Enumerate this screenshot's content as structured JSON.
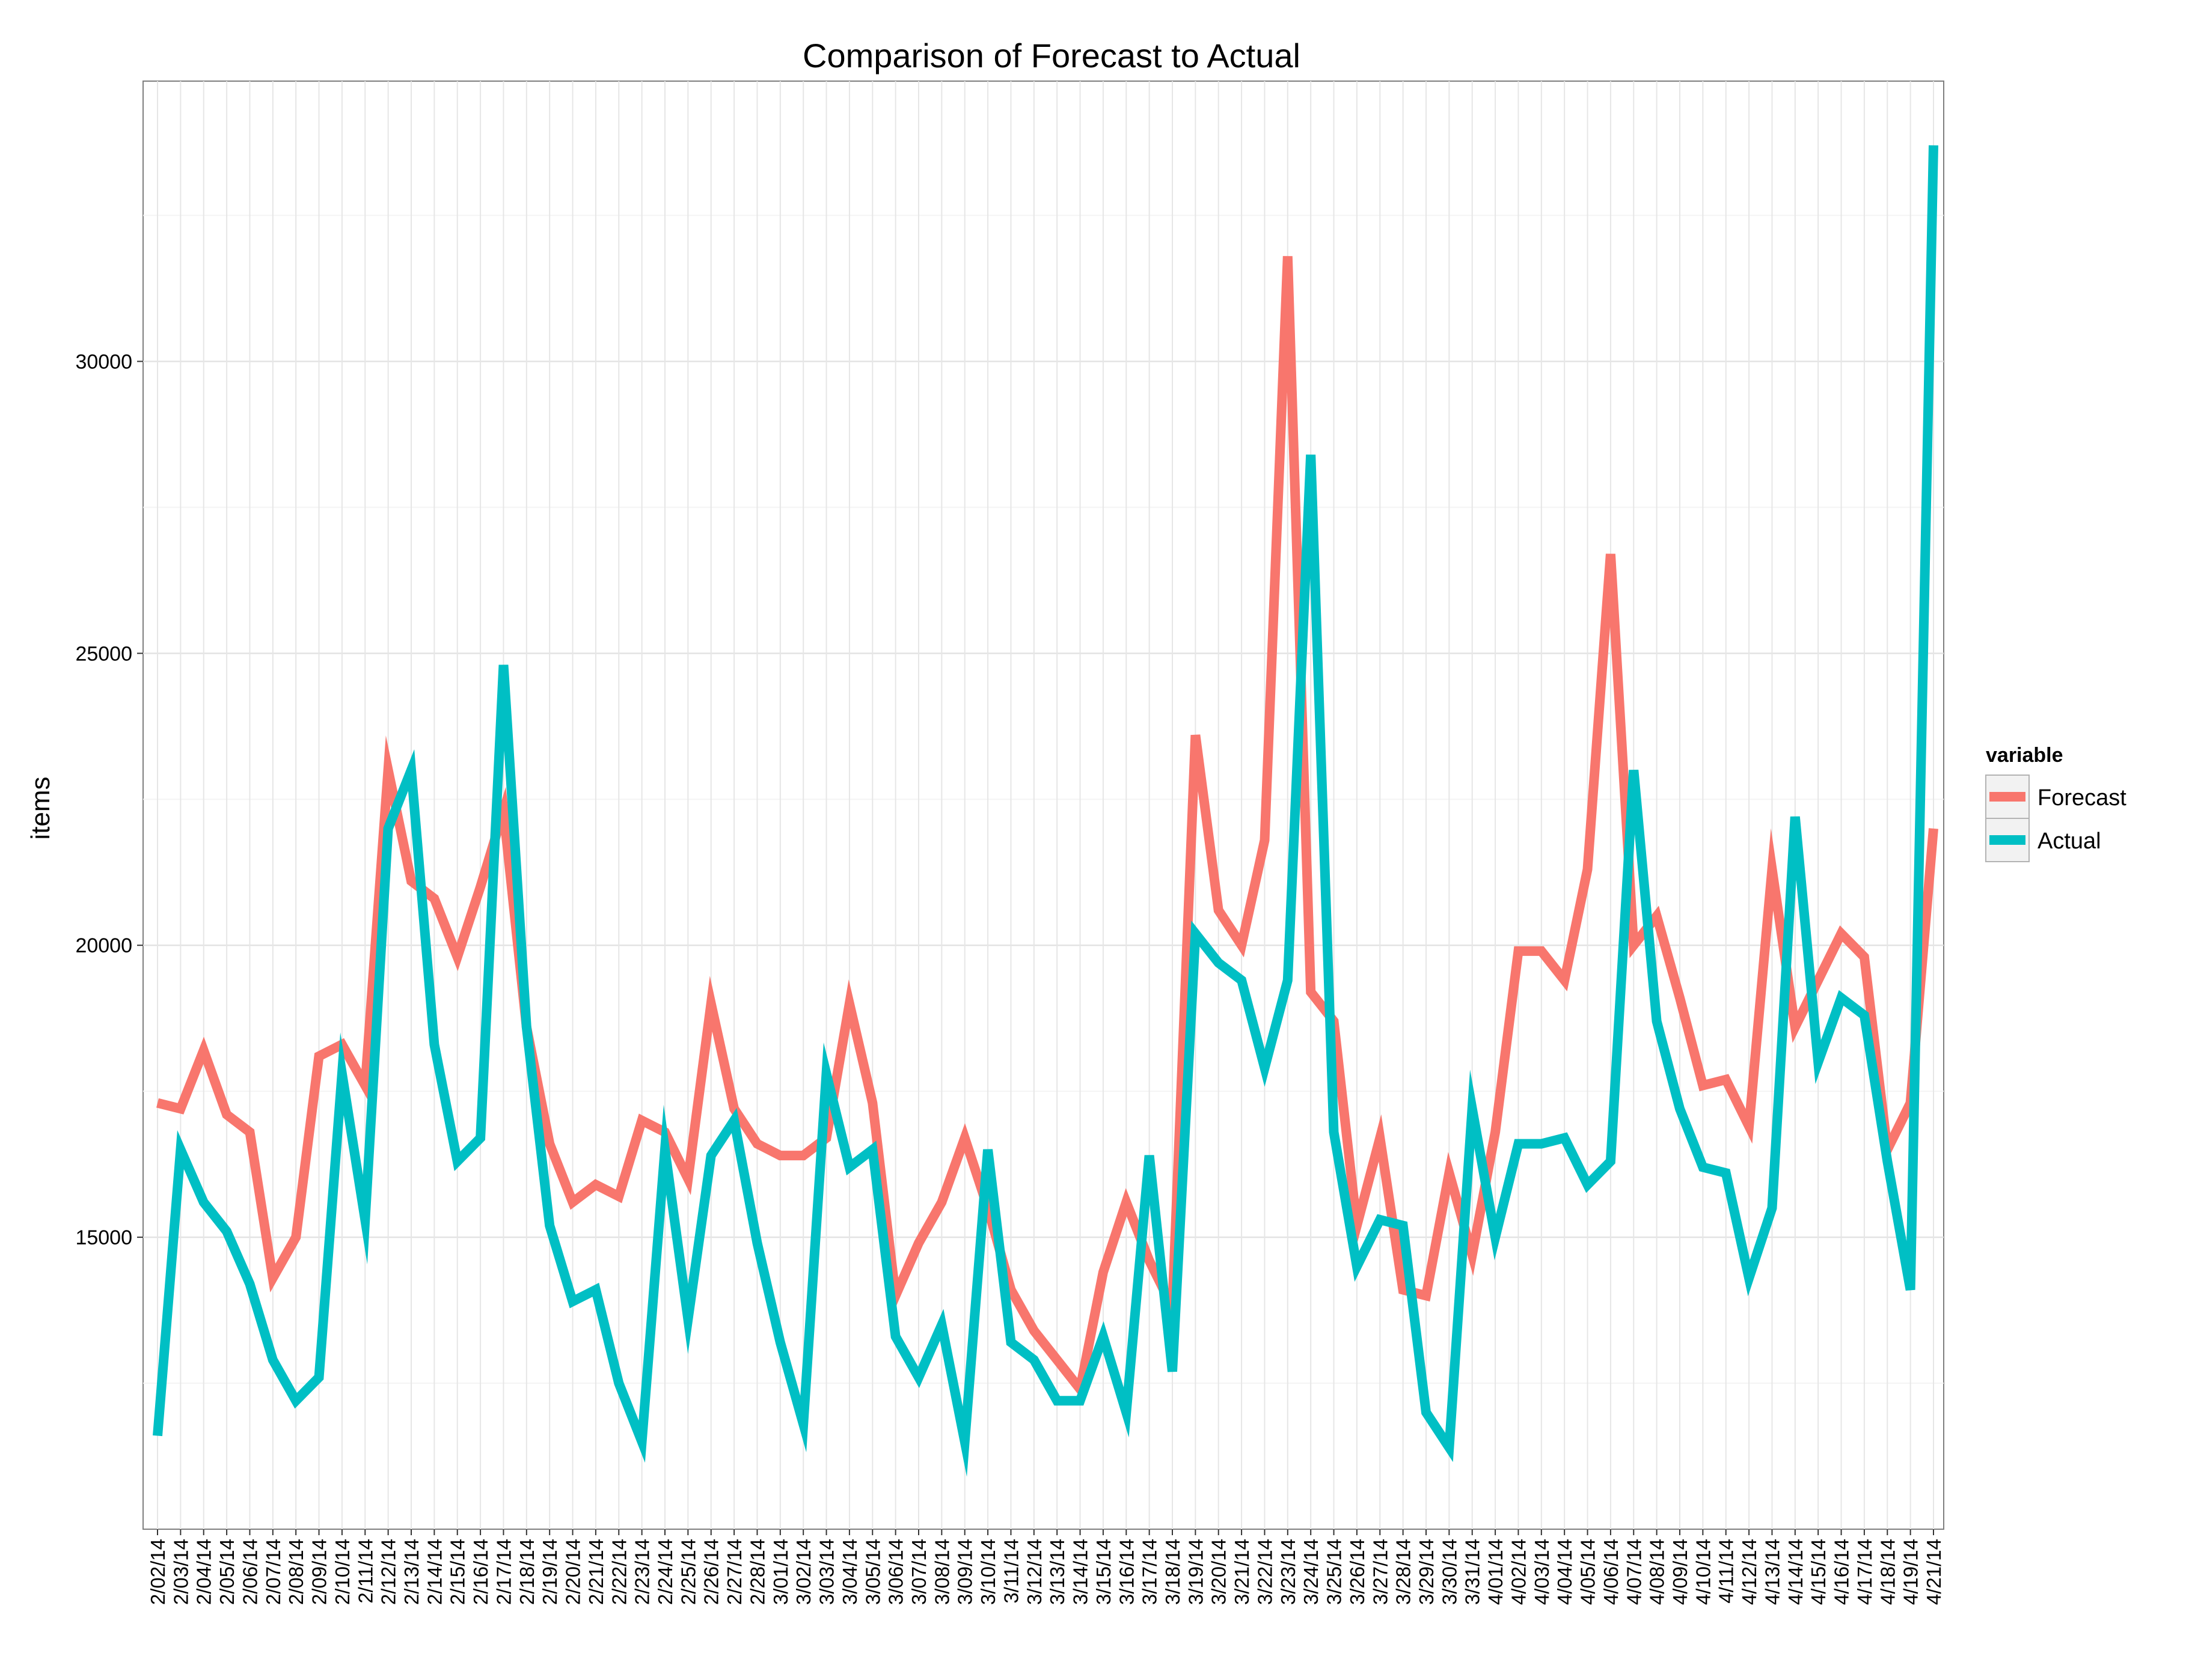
{
  "chart_data": {
    "type": "line",
    "title": "Comparison of Forecast to Actual",
    "xlabel": "",
    "ylabel": "items",
    "ylim": [
      10000,
      34800
    ],
    "yticks": [
      15000,
      20000,
      25000,
      30000
    ],
    "grid": true,
    "legend": {
      "title": "variable",
      "position": "right"
    },
    "categories": [
      "2/02/14",
      "2/03/14",
      "2/04/14",
      "2/05/14",
      "2/06/14",
      "2/07/14",
      "2/08/14",
      "2/09/14",
      "2/10/14",
      "2/11/14",
      "2/12/14",
      "2/13/14",
      "2/14/14",
      "2/15/14",
      "2/16/14",
      "2/17/14",
      "2/18/14",
      "2/19/14",
      "2/20/14",
      "2/21/14",
      "2/22/14",
      "2/23/14",
      "2/24/14",
      "2/25/14",
      "2/26/14",
      "2/27/14",
      "2/28/14",
      "3/01/14",
      "3/02/14",
      "3/03/14",
      "3/04/14",
      "3/05/14",
      "3/06/14",
      "3/07/14",
      "3/08/14",
      "3/09/14",
      "3/10/14",
      "3/11/14",
      "3/12/14",
      "3/13/14",
      "3/14/14",
      "3/15/14",
      "3/16/14",
      "3/17/14",
      "3/18/14",
      "3/19/14",
      "3/20/14",
      "3/21/14",
      "3/22/14",
      "3/23/14",
      "3/24/14",
      "3/25/14",
      "3/26/14",
      "3/27/14",
      "3/28/14",
      "3/29/14",
      "3/30/14",
      "3/31/14",
      "4/01/14",
      "4/02/14",
      "4/03/14",
      "4/04/14",
      "4/05/14",
      "4/06/14",
      "4/07/14",
      "4/08/14",
      "4/09/14",
      "4/10/14",
      "4/11/14",
      "4/12/14",
      "4/13/14",
      "4/14/14",
      "4/15/14",
      "4/16/14",
      "4/17/14",
      "4/18/14",
      "4/19/14",
      "4/21/14"
    ],
    "series": [
      {
        "name": "Forecast",
        "color": "#F8766D",
        "values": [
          17300,
          17200,
          18200,
          17100,
          16800,
          14300,
          15000,
          18100,
          18300,
          17600,
          23000,
          21100,
          20800,
          19800,
          21000,
          22300,
          18600,
          16600,
          15600,
          15900,
          15700,
          17000,
          16800,
          16000,
          19000,
          17200,
          16600,
          16400,
          16400,
          16700,
          19000,
          17300,
          14000,
          14900,
          15600,
          16700,
          15500,
          14100,
          13400,
          12900,
          12400,
          14400,
          15600,
          14600,
          13800,
          23600,
          20600,
          20000,
          21800,
          31800,
          19200,
          18700,
          15200,
          16700,
          14100,
          14000,
          16100,
          14700,
          16800,
          19900,
          19900,
          19400,
          21300,
          26700,
          20000,
          20500,
          19100,
          17600,
          17700,
          16900,
          21300,
          18600,
          19400,
          20200,
          19800,
          16500,
          17300,
          22000
        ]
      },
      {
        "name": "Actual",
        "color": "#00BFC4",
        "values": [
          11600,
          16500,
          15600,
          15100,
          14200,
          12900,
          12200,
          12600,
          17800,
          15300,
          22000,
          23000,
          18300,
          16300,
          16700,
          24800,
          18600,
          15200,
          13900,
          14100,
          12500,
          11500,
          16500,
          13600,
          16400,
          17000,
          14900,
          13200,
          11800,
          17800,
          16200,
          16500,
          13300,
          12600,
          13500,
          11500,
          16500,
          13200,
          12900,
          12200,
          12200,
          13300,
          12000,
          16400,
          12700,
          20200,
          19700,
          19400,
          17900,
          19400,
          28400,
          16800,
          14500,
          15300,
          15200,
          12000,
          11400,
          17200,
          15000,
          16600,
          16600,
          16700,
          15900,
          16300,
          23000,
          18700,
          17200,
          16200,
          16100,
          14300,
          15500,
          22200,
          18000,
          19100,
          18800,
          16300,
          14100,
          33700
        ]
      }
    ]
  }
}
